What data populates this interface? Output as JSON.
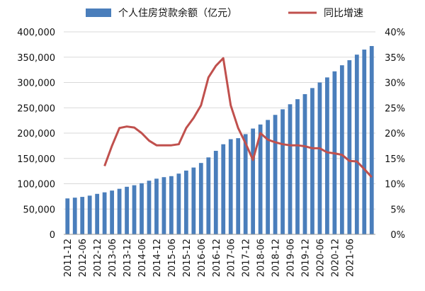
{
  "chart_data": {
    "type": "bar+line",
    "legend_position": "top",
    "grid": true,
    "series": [
      {
        "name": "个人住房贷款余额（亿元）",
        "type": "bar",
        "axis": "left",
        "color": "#4a7ebb",
        "values": [
          71000,
          72500,
          74000,
          76500,
          80000,
          83000,
          86500,
          90000,
          94000,
          97000,
          101000,
          106000,
          110000,
          113000,
          115000,
          120000,
          126000,
          132000,
          141000,
          152000,
          165000,
          178000,
          188000,
          190000,
          198000,
          209000,
          217000,
          226000,
          236000,
          247000,
          257000,
          267000,
          277000,
          289000,
          300000,
          310000,
          322000,
          334000,
          344000,
          355000,
          365000,
          372000
        ]
      },
      {
        "name": "同比增速",
        "type": "line",
        "axis": "right",
        "color": "#c0504d",
        "values": [
          null,
          null,
          null,
          null,
          null,
          13.5,
          17.5,
          21.0,
          21.3,
          21.1,
          20.0,
          18.5,
          17.6,
          17.6,
          17.6,
          17.8,
          21.0,
          23.0,
          25.5,
          31.0,
          33.3,
          34.8,
          25.5,
          21.0,
          18.0,
          14.7,
          20.0,
          18.7,
          18.2,
          17.8,
          17.6,
          17.6,
          17.4,
          17.0,
          17.0,
          16.2,
          16.0,
          15.7,
          14.5,
          14.4,
          12.9,
          11.3
        ]
      }
    ],
    "x_tick_labels": [
      "2011-12",
      "2012-06",
      "2012-12",
      "2013-06",
      "2013-12",
      "2014-06",
      "2014-12",
      "2015-06",
      "2015-12",
      "2016-06",
      "2016-12",
      "2017-06",
      "2017-12",
      "2018-06",
      "2018-12",
      "2019-06",
      "2019-12",
      "2020-06",
      "2020-12",
      "2021-06"
    ],
    "y_left": {
      "min": 0,
      "max": 400000,
      "ticks": [
        "0",
        "50,000",
        "100,000",
        "150,000",
        "200,000",
        "250,000",
        "300,000",
        "350,000",
        "400,000"
      ]
    },
    "y_right": {
      "min": 0,
      "max": 40,
      "ticks": [
        "0%",
        "5%",
        "10%",
        "15%",
        "20%",
        "25%",
        "30%",
        "35%",
        "40%"
      ]
    }
  }
}
